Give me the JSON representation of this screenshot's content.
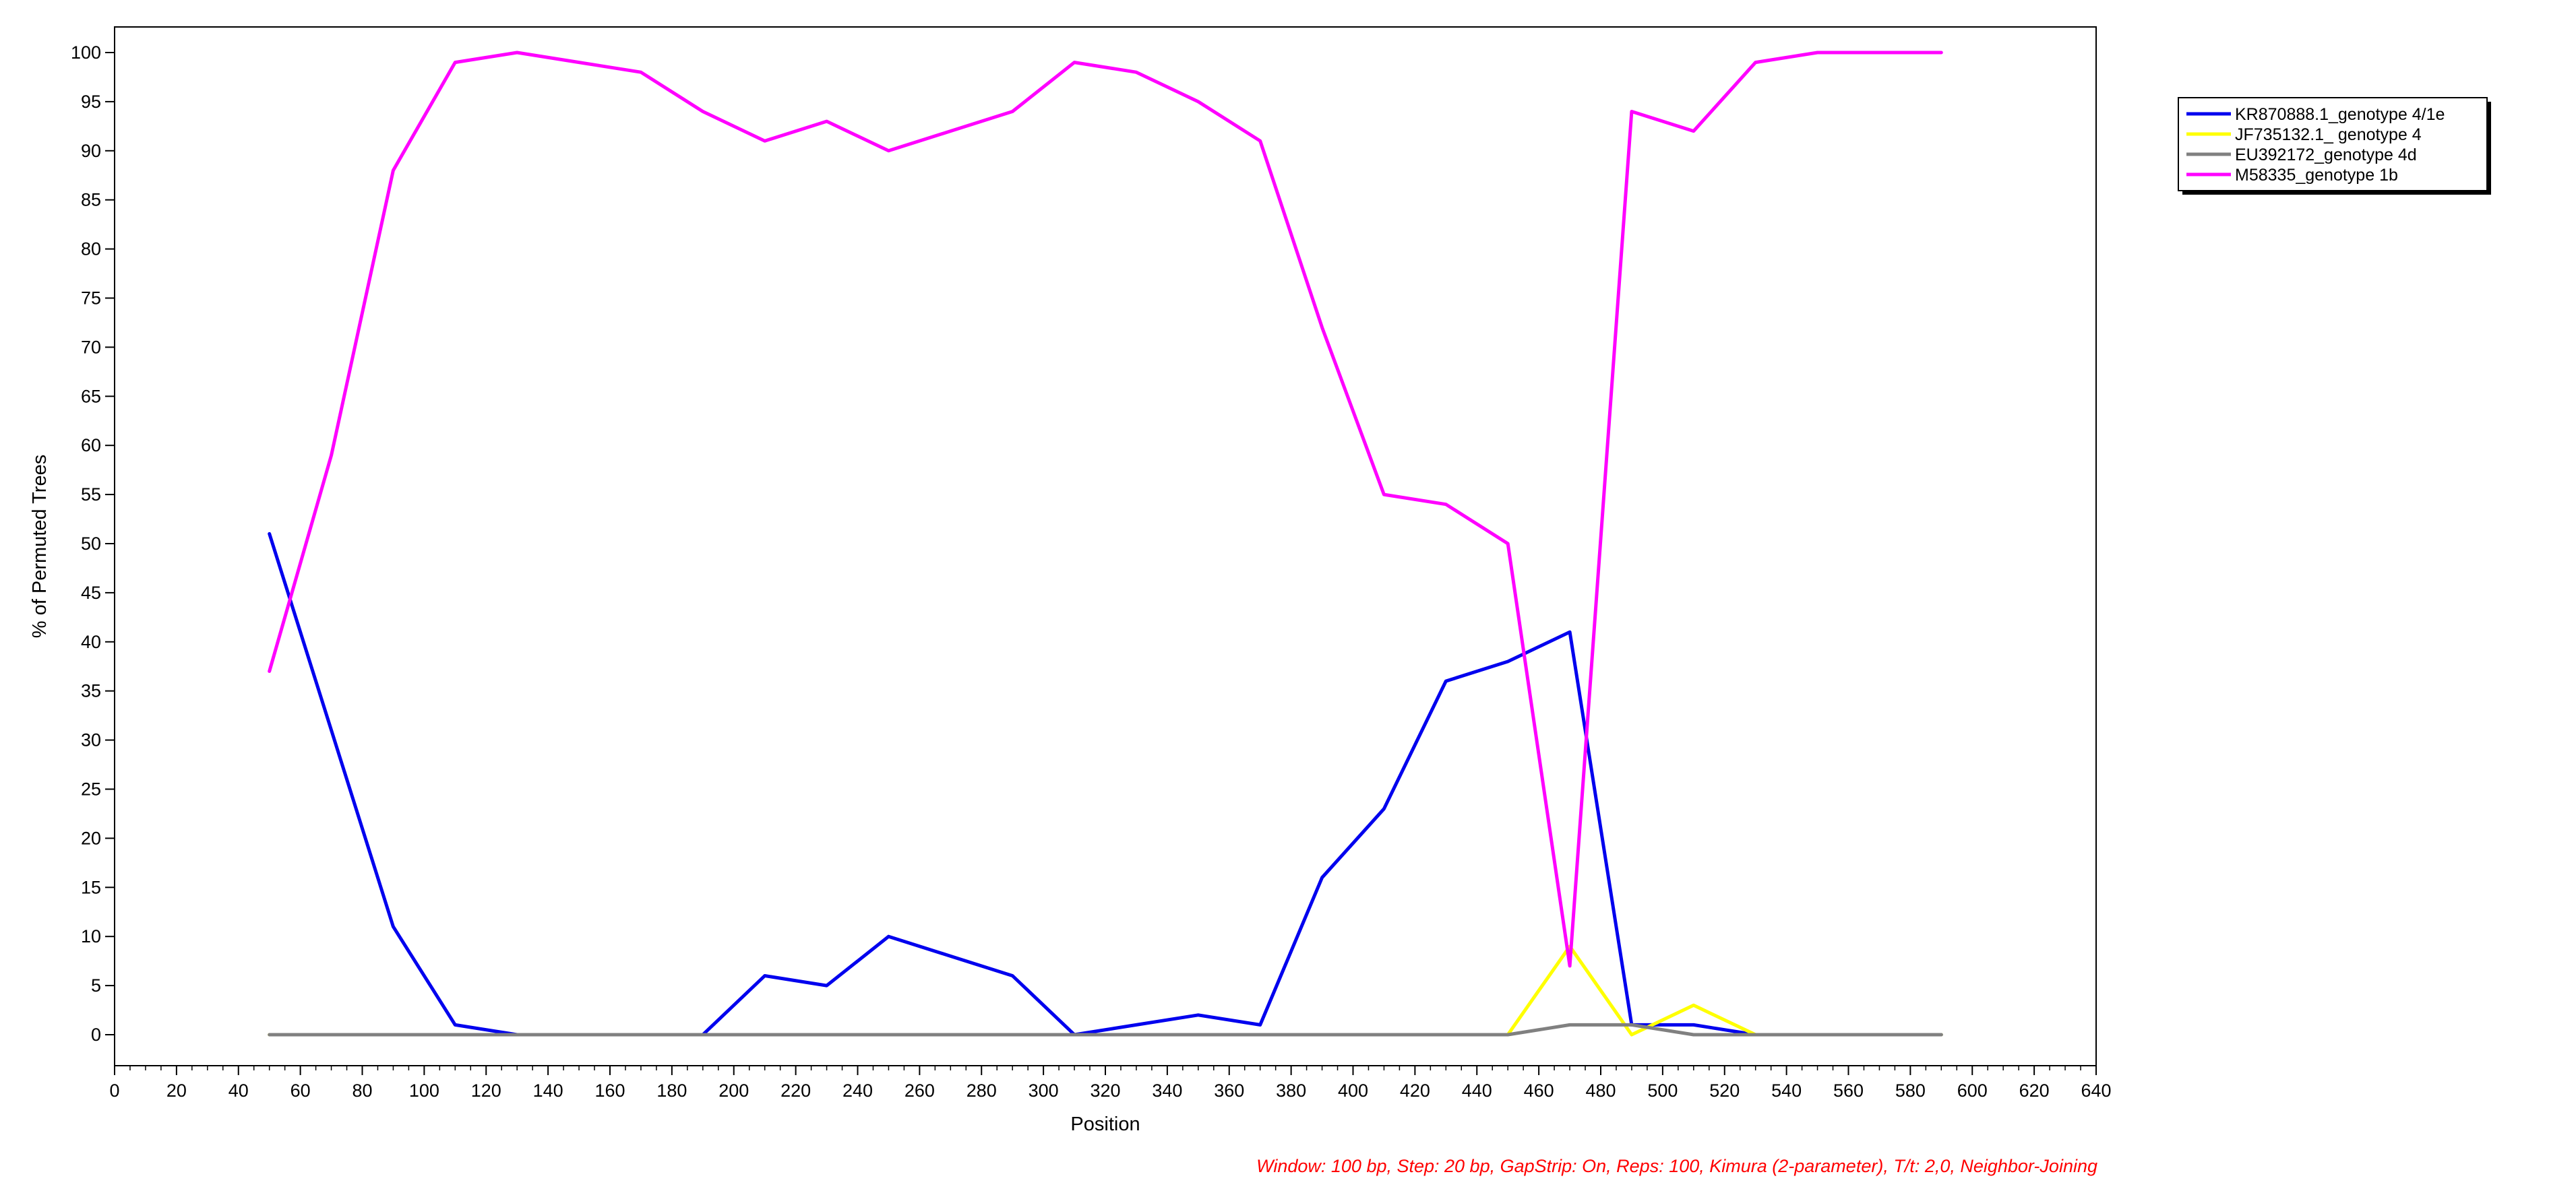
{
  "chart_data": {
    "type": "line",
    "xlabel": "Position",
    "ylabel": "% of Permuted Trees",
    "xlim": [
      0,
      640
    ],
    "ylim": [
      0,
      100
    ],
    "x_ticks": [
      0,
      20,
      40,
      60,
      80,
      100,
      120,
      140,
      160,
      180,
      200,
      220,
      240,
      260,
      280,
      300,
      320,
      340,
      360,
      380,
      400,
      420,
      440,
      460,
      480,
      500,
      520,
      540,
      560,
      580,
      600,
      620,
      640
    ],
    "y_ticks": [
      0,
      5,
      10,
      15,
      20,
      25,
      30,
      35,
      40,
      45,
      50,
      55,
      60,
      65,
      70,
      75,
      80,
      85,
      90,
      95,
      100
    ],
    "grid": false,
    "legend_position": "top-right",
    "x": [
      50,
      70,
      90,
      110,
      130,
      150,
      170,
      190,
      210,
      230,
      250,
      270,
      290,
      310,
      330,
      350,
      370,
      390,
      410,
      430,
      450,
      470,
      490,
      510,
      530,
      550,
      570,
      590
    ],
    "series": [
      {
        "name": "KR870888.1_genotype 4/1e",
        "color": "#0000ee",
        "values": [
          51,
          31,
          11,
          1,
          0,
          0,
          0,
          0,
          6,
          5,
          10,
          8,
          6,
          0,
          1,
          2,
          1,
          16,
          23,
          36,
          38,
          41,
          1,
          1,
          0,
          0,
          0,
          0
        ]
      },
      {
        "name": "JF735132.1_ genotype 4",
        "color": "#ffff00",
        "values": [
          0,
          0,
          0,
          0,
          0,
          0,
          0,
          0,
          0,
          0,
          0,
          0,
          0,
          0,
          0,
          0,
          0,
          0,
          0,
          0,
          0,
          9,
          0,
          3,
          0,
          0,
          0,
          0
        ]
      },
      {
        "name": "EU392172_genotype 4d",
        "color": "#808080",
        "values": [
          0,
          0,
          0,
          0,
          0,
          0,
          0,
          0,
          0,
          0,
          0,
          0,
          0,
          0,
          0,
          0,
          0,
          0,
          0,
          0,
          0,
          1,
          1,
          0,
          0,
          0,
          0,
          0
        ]
      },
      {
        "name": "M58335_genotype 1b",
        "color": "#ff00ff",
        "values": [
          37,
          59,
          88,
          99,
          100,
          99,
          98,
          94,
          91,
          93,
          90,
          92,
          94,
          99,
          98,
          95,
          91,
          72,
          55,
          54,
          50,
          7,
          94,
          92,
          99,
          100,
          100,
          100
        ]
      }
    ],
    "footnote": "Window: 100 bp, Step: 20 bp, GapStrip: On, Reps: 100, Kimura (2-parameter), T/t: 2,0, Neighbor-Joining",
    "footnote_color": "#ff0000"
  }
}
